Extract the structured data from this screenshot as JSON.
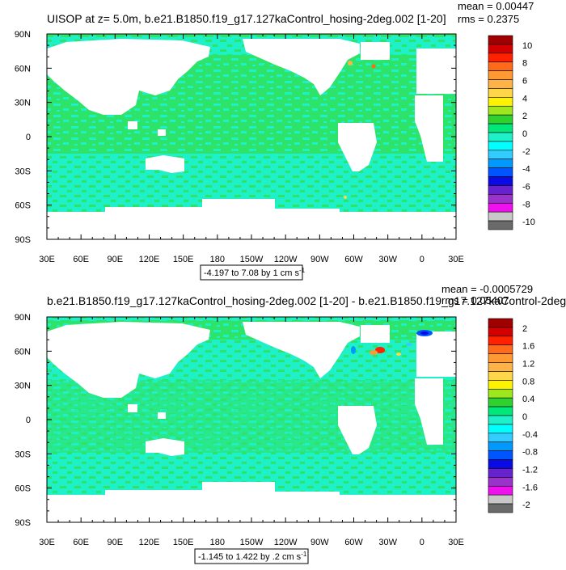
{
  "chart_data": [
    {
      "type": "heatmap",
      "title": "UISOP at z=   5.0m, b.e21.B1850.f19_g17.127kaControl_hosing-2deg.002 [1-20]",
      "stats": [
        "mean = 0.00447",
        "rms = 0.2375"
      ],
      "xticks": [
        "30E",
        "60E",
        "90E",
        "120E",
        "150E",
        "180",
        "150W",
        "120W",
        "90W",
        "60W",
        "30W",
        "0",
        "30E"
      ],
      "yticks": [
        "90N",
        "60N",
        "30N",
        "0",
        "30S",
        "60S",
        "90S"
      ],
      "range_label": "-4.197 to 7.08 by 1 cm s",
      "range_sup": "-1",
      "colorbar": {
        "labels": [
          "10",
          "8",
          "6",
          "4",
          "2",
          "0",
          "-2",
          "-4",
          "-6",
          "-8",
          "-10"
        ],
        "colors": [
          "#a00000",
          "#d40000",
          "#ff2200",
          "#ff6a1a",
          "#ff9933",
          "#ffb347",
          "#ffd54a",
          "#fff200",
          "#9ee61e",
          "#2fd12f",
          "#00e87a",
          "#1ef0c8",
          "#00ffff",
          "#33ccff",
          "#0099ff",
          "#0055ff",
          "#0a0ae6",
          "#6622cc",
          "#9933cc",
          "#ee11ee",
          "#c8c8c8",
          "#6a6a6a"
        ]
      }
    },
    {
      "type": "heatmap",
      "title": "b.e21.B1850.f19_g17.127kaControl_hosing-2deg.002 [1-20] - b.e21.B1850.f19_g17.127kaControl-2deg.",
      "stats": [
        "mean = -0.0005729",
        "rms = 0.05407"
      ],
      "xticks": [
        "30E",
        "60E",
        "90E",
        "120E",
        "150E",
        "180",
        "150W",
        "120W",
        "90W",
        "60W",
        "30W",
        "0",
        "30E"
      ],
      "yticks": [
        "90N",
        "60N",
        "30N",
        "0",
        "30S",
        "60S",
        "90S"
      ],
      "range_label": "-1.145 to 1.422 by .2 cm s",
      "range_sup": "-1",
      "colorbar": {
        "labels": [
          "2",
          "1.6",
          "1.2",
          "0.8",
          "0.4",
          "0",
          "-0.4",
          "-0.8",
          "-1.2",
          "-1.6",
          "-2"
        ],
        "colors": [
          "#a00000",
          "#d40000",
          "#ff2200",
          "#ff6a1a",
          "#ff9933",
          "#ffb347",
          "#ffd54a",
          "#fff200",
          "#9ee61e",
          "#2fd12f",
          "#00e87a",
          "#1ef0c8",
          "#00ffff",
          "#33ccff",
          "#0099ff",
          "#0055ff",
          "#0a0ae6",
          "#6622cc",
          "#9933cc",
          "#ee11ee",
          "#c8c8c8",
          "#6a6a6a"
        ]
      }
    }
  ]
}
